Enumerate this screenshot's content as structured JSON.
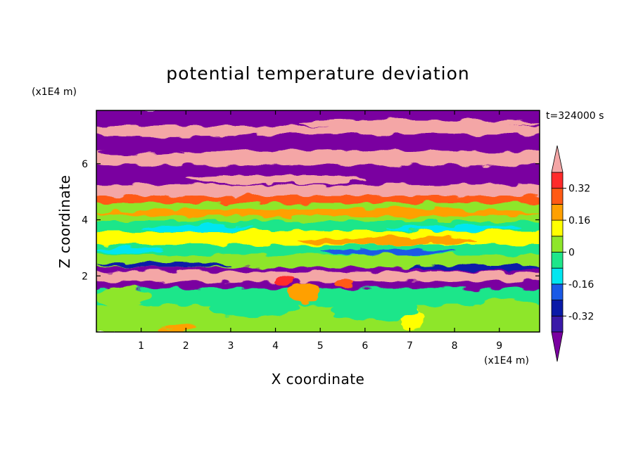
{
  "chart_data": {
    "type": "heatmap",
    "title": "potential temperature deviation",
    "time_label": "t=324000 s",
    "xlabel": "X coordinate",
    "ylabel": "Z coordinate",
    "x_unit": "(x1E4 m)",
    "y_unit": "(x1E4 m)",
    "xlim": [
      0,
      9.9
    ],
    "ylim": [
      0,
      7.9
    ],
    "x_ticks": [
      1,
      2,
      3,
      4,
      5,
      6,
      7,
      8,
      9
    ],
    "y_ticks": [
      2,
      4,
      6
    ],
    "colorbar": {
      "levels": [
        -0.4,
        -0.32,
        -0.24,
        -0.16,
        -0.08,
        0,
        0.08,
        0.16,
        0.24,
        0.32,
        0.4
      ],
      "colors": [
        "#7a00a0",
        "#3a1aa8",
        "#0a1aa8",
        "#1a5ae6",
        "#00e6f0",
        "#1ee68a",
        "#8ee62a",
        "#ffff00",
        "#ffa000",
        "#ff5a14",
        "#ff2a2a",
        "#f4a6a6"
      ],
      "tick_labels": [
        "0.32",
        "0.16",
        "0",
        "-0.16",
        "-0.32"
      ],
      "tick_values": [
        0.32,
        0.16,
        0,
        -0.16,
        -0.32
      ],
      "extend": "both"
    },
    "bands": [
      {
        "z": [
          7.3,
          7.9
        ],
        "value": -0.45
      },
      {
        "z": [
          7.0,
          7.3
        ],
        "value": 0.45
      },
      {
        "z": [
          6.4,
          7.0
        ],
        "value": -0.45
      },
      {
        "z": [
          5.9,
          6.4
        ],
        "value": 0.45
      },
      {
        "z": [
          5.2,
          5.9
        ],
        "value": -0.45
      },
      {
        "z": [
          4.8,
          5.2
        ],
        "value": 0.45
      },
      {
        "z": [
          4.55,
          4.8
        ],
        "value": 0.3
      },
      {
        "z": [
          3.9,
          4.55
        ],
        "value": 0.05
      },
      {
        "z": [
          3.55,
          3.9
        ],
        "value": -0.04
      },
      {
        "z": [
          3.05,
          3.55
        ],
        "value": 0.12
      },
      {
        "z": [
          2.7,
          3.05
        ],
        "value": -0.04
      },
      {
        "z": [
          2.25,
          2.7
        ],
        "value": 0.04
      },
      {
        "z": [
          2.1,
          2.25
        ],
        "value": -0.45
      },
      {
        "z": [
          1.75,
          2.1
        ],
        "value": 0.45
      },
      {
        "z": [
          1.5,
          1.75
        ],
        "value": -0.45
      },
      {
        "z": [
          0.9,
          1.5
        ],
        "value": -0.04
      },
      {
        "z": [
          0.0,
          0.9
        ],
        "value": 0.05
      }
    ],
    "features": [
      {
        "x": [
          0.0,
          9.9
        ],
        "z": [
          4.1,
          4.4
        ],
        "value": 0.2
      },
      {
        "x": [
          4.5,
          8.5
        ],
        "z": [
          3.1,
          3.4
        ],
        "value": 0.18
      },
      {
        "x": [
          1.0,
          3.5
        ],
        "z": [
          3.6,
          3.8
        ],
        "value": -0.12
      },
      {
        "x": [
          6.5,
          9.5
        ],
        "z": [
          3.6,
          3.8
        ],
        "value": -0.14
      },
      {
        "x": [
          0.0,
          9.9
        ],
        "z": [
          4.6,
          4.75
        ],
        "value": 0.28
      },
      {
        "x": [
          2.0,
          6.0
        ],
        "z": [
          5.3,
          5.6
        ],
        "value": 0.45
      },
      {
        "x": [
          0.0,
          3.0
        ],
        "z": [
          2.3,
          2.5
        ],
        "value": -0.3
      },
      {
        "x": [
          7.0,
          9.9
        ],
        "z": [
          2.2,
          2.4
        ],
        "value": -0.25
      },
      {
        "x": [
          4.3,
          5.0
        ],
        "z": [
          1.0,
          1.8
        ],
        "value": 0.18
      },
      {
        "x": [
          4.0,
          4.4
        ],
        "z": [
          1.7,
          2.0
        ],
        "value": 0.34
      },
      {
        "x": [
          5.3,
          5.8
        ],
        "z": [
          1.6,
          1.9
        ],
        "value": 0.3
      },
      {
        "x": [
          6.8,
          7.3
        ],
        "z": [
          0.0,
          0.8
        ],
        "value": 0.14
      },
      {
        "x": [
          1.4,
          2.2
        ],
        "z": [
          0.0,
          0.2
        ],
        "value": 0.16
      },
      {
        "x": [
          0.0,
          1.2
        ],
        "z": [
          0.9,
          1.6
        ],
        "value": 0.07
      },
      {
        "x": [
          2.5,
          4.5
        ],
        "z": [
          0.5,
          1.3
        ],
        "value": -0.03
      },
      {
        "x": [
          5.2,
          7.2
        ],
        "z": [
          0.4,
          1.2
        ],
        "value": -0.03
      },
      {
        "x": [
          8.5,
          9.9
        ],
        "z": [
          0.3,
          1.2
        ],
        "value": 0.07
      },
      {
        "x": [
          0.0,
          1.5
        ],
        "z": [
          2.8,
          3.0
        ],
        "value": -0.12
      },
      {
        "x": [
          5.0,
          8.0
        ],
        "z": [
          2.75,
          2.95
        ],
        "value": -0.2
      },
      {
        "x": [
          0.0,
          2.0
        ],
        "z": [
          6.3,
          6.5
        ],
        "value": -0.45
      },
      {
        "x": [
          4.5,
          9.9
        ],
        "z": [
          7.3,
          7.6
        ],
        "value": 0.45
      },
      {
        "x": [
          0.0,
          3.5
        ],
        "z": [
          6.95,
          7.15
        ],
        "value": 0.45
      }
    ]
  }
}
